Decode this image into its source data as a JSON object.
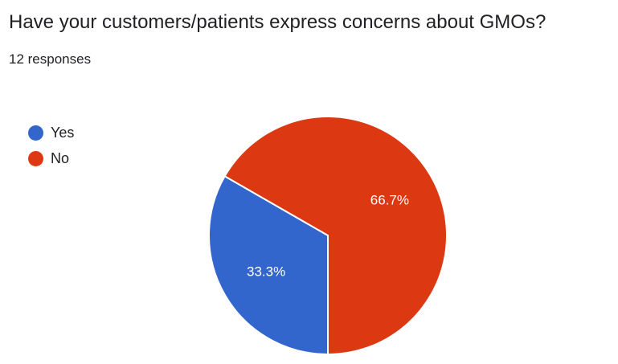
{
  "question": {
    "title": "Have your customers/patients express concerns about GMOs?",
    "response_count": "12 responses"
  },
  "chart_data": {
    "type": "pie",
    "title": "",
    "slices": [
      {
        "label": "Yes",
        "value": 33.3,
        "display": "33.3%",
        "color": "#3366cc"
      },
      {
        "label": "No",
        "value": 66.7,
        "display": "66.7%",
        "color": "#dc3912"
      }
    ],
    "legend_position": "left",
    "start_angle_deg": 90,
    "direction": "clockwise"
  }
}
